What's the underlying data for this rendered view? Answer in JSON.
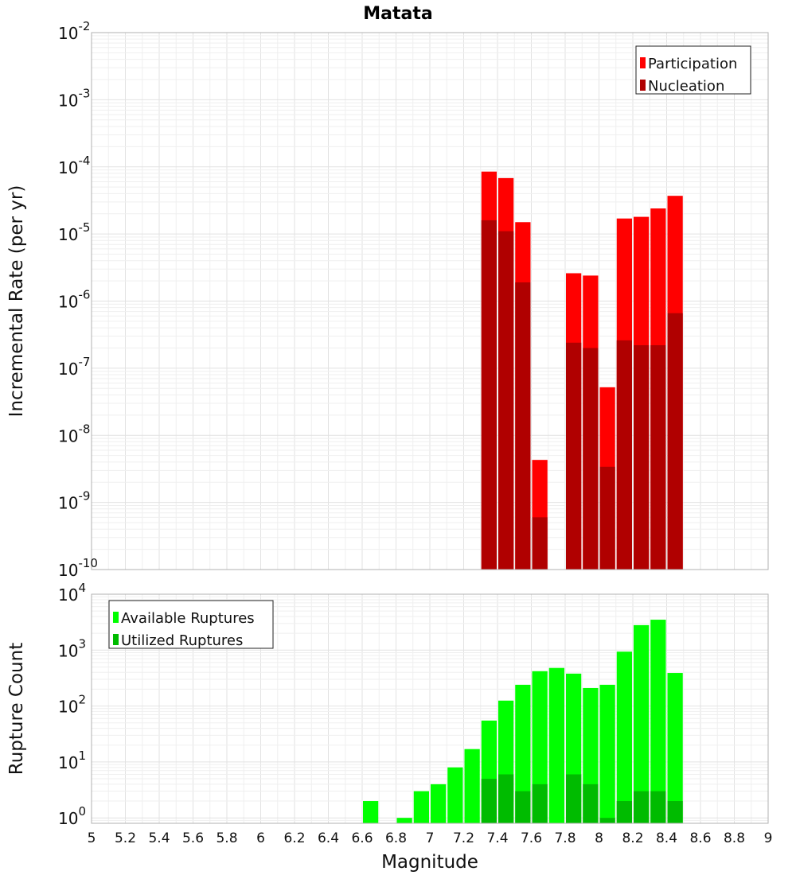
{
  "chart_data": [
    {
      "type": "bar",
      "title": "Matata",
      "xlabel": "",
      "ylabel": "Incremental Rate (per yr)",
      "y_scale": "log",
      "ylim": [
        1e-10,
        0.01
      ],
      "xlim": [
        5,
        9
      ],
      "y_ticks": [
        {
          "base": "10",
          "exp": "-2"
        },
        {
          "base": "10",
          "exp": "-3"
        },
        {
          "base": "10",
          "exp": "-4"
        },
        {
          "base": "10",
          "exp": "-5"
        },
        {
          "base": "10",
          "exp": "-6"
        },
        {
          "base": "10",
          "exp": "-7"
        },
        {
          "base": "10",
          "exp": "-8"
        },
        {
          "base": "10",
          "exp": "-9"
        },
        {
          "base": "10",
          "exp": "-10"
        }
      ],
      "grid": true,
      "legend_position": "top-right",
      "x": [
        7.35,
        7.45,
        7.55,
        7.65,
        7.85,
        7.95,
        8.05,
        8.15,
        8.25,
        8.35,
        8.45
      ],
      "series": [
        {
          "name": "Participation",
          "color": "#ff0000",
          "values": [
            8.5e-05,
            6.8e-05,
            1.5e-05,
            4.3e-09,
            2.6e-06,
            2.4e-06,
            5.2e-08,
            1.7e-05,
            1.8e-05,
            2.4e-05,
            3.7e-05
          ]
        },
        {
          "name": "Nucleation",
          "color": "#b00000",
          "values": [
            1.6e-05,
            1.1e-05,
            1.9e-06,
            6e-10,
            2.4e-07,
            2e-07,
            3.4e-09,
            2.6e-07,
            2.2e-07,
            2.2e-07,
            6.6e-07
          ]
        }
      ]
    },
    {
      "type": "bar",
      "title": "",
      "xlabel": "Magnitude",
      "ylabel": "Rupture Count",
      "y_scale": "log",
      "ylim": [
        0.8,
        10000
      ],
      "xlim": [
        5,
        9
      ],
      "x_tick_labels": [
        "5",
        "5.2",
        "5.4",
        "5.6",
        "5.8",
        "6",
        "6.2",
        "6.4",
        "6.6",
        "6.8",
        "7",
        "7.2",
        "7.4",
        "7.6",
        "7.8",
        "8",
        "8.2",
        "8.4",
        "8.6",
        "8.8",
        "9"
      ],
      "y_ticks": [
        {
          "base": "10",
          "exp": "4"
        },
        {
          "base": "10",
          "exp": "3"
        },
        {
          "base": "10",
          "exp": "2"
        },
        {
          "base": "10",
          "exp": "1"
        },
        {
          "base": "10",
          "exp": "0"
        }
      ],
      "grid": true,
      "legend_position": "top-left",
      "x": [
        6.65,
        6.85,
        6.95,
        7.05,
        7.15,
        7.25,
        7.35,
        7.45,
        7.55,
        7.65,
        7.75,
        7.85,
        7.95,
        8.05,
        8.15,
        8.25,
        8.35,
        8.45
      ],
      "series": [
        {
          "name": "Available Ruptures",
          "color": "#00ff00",
          "values": [
            2,
            1,
            3,
            4,
            8,
            17,
            55,
            125,
            240,
            420,
            480,
            380,
            210,
            240,
            940,
            2800,
            3500,
            390
          ]
        },
        {
          "name": "Utilized Ruptures",
          "color": "#00bb00",
          "values": [
            0,
            0,
            0,
            0,
            0,
            0,
            5,
            6,
            3,
            4,
            0,
            6,
            4,
            1,
            2,
            3,
            3,
            2
          ]
        }
      ]
    }
  ]
}
